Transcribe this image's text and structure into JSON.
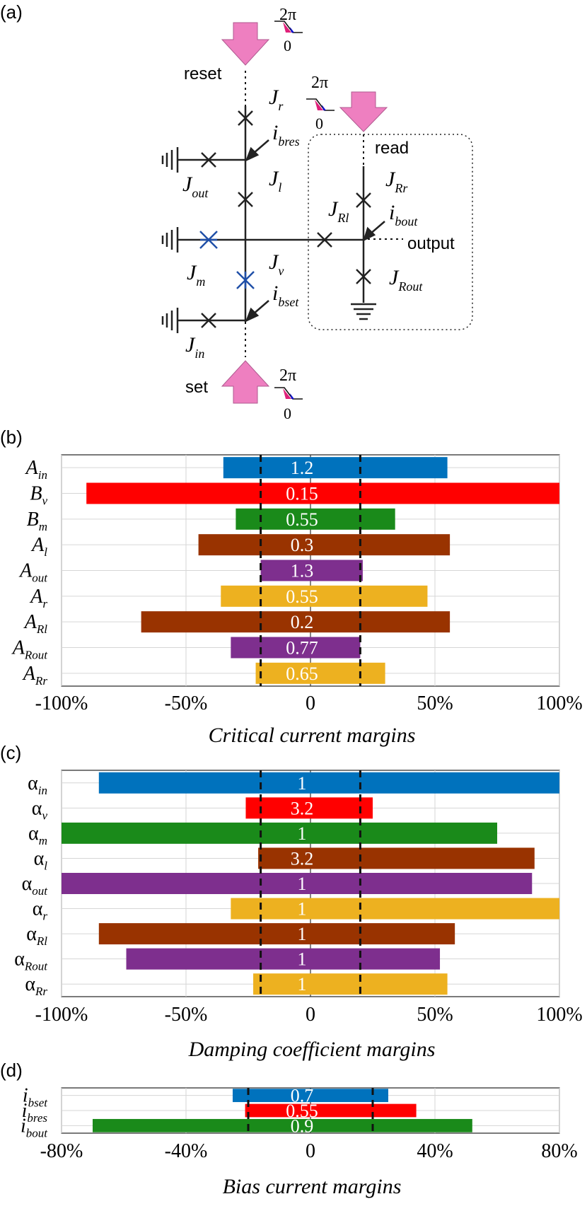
{
  "panel_labels": {
    "a": "(a)",
    "b": "(b)",
    "c": "(c)",
    "d": "(d)"
  },
  "circuit": {
    "ports": {
      "reset": "reset",
      "read": "read",
      "output": "output",
      "set": "set"
    },
    "phase_hi": "2π",
    "phase_lo": "0",
    "junctions": {
      "Jr": {
        "main": "J",
        "sub": "r"
      },
      "Jl": {
        "main": "J",
        "sub": "l"
      },
      "Jout": {
        "main": "J",
        "sub": "out"
      },
      "Jm": {
        "main": "J",
        "sub": "m"
      },
      "Jv": {
        "main": "J",
        "sub": "v"
      },
      "Jin": {
        "main": "J",
        "sub": "in"
      },
      "JRl": {
        "main": "J",
        "sub": "Rl"
      },
      "JRr": {
        "main": "J",
        "sub": "Rr"
      },
      "JRout": {
        "main": "J",
        "sub": "Rout"
      }
    },
    "currents": {
      "ibres": {
        "main": "i",
        "sub": "bres"
      },
      "ibset": {
        "main": "i",
        "sub": "bset"
      },
      "ibout": {
        "main": "i",
        "sub": "bout"
      }
    },
    "colors": {
      "arrow": "#ee7fc0",
      "junction": "#333333",
      "blue_junction": "#1f4fa8",
      "phase_pink": "#e0207a",
      "phase_blue": "#1010d0"
    }
  },
  "chart_data": [
    {
      "type": "bar",
      "panel": "b",
      "xlabel": "Critical current margins",
      "xlim": [
        -100,
        100
      ],
      "xticks": [
        -100,
        -50,
        0,
        50,
        100
      ],
      "xtick_labels": [
        "-100%",
        "-50%",
        "0",
        "50%",
        "100%"
      ],
      "threshold_lines": [
        -20,
        20
      ],
      "grid": true,
      "rows": [
        {
          "label": "A",
          "sub": "in",
          "low": -35,
          "high": 55,
          "value_label": "1.2",
          "color": "#0072bd"
        },
        {
          "label": "B",
          "sub": "v",
          "low": -90,
          "high": 100,
          "value_label": "0.15",
          "color": "#ff0000"
        },
        {
          "label": "B",
          "sub": "m",
          "low": -30,
          "high": 34,
          "value_label": "0.55",
          "color": "#1a8a1a"
        },
        {
          "label": "A",
          "sub": "l",
          "low": -45,
          "high": 56,
          "value_label": "0.3",
          "color": "#993300"
        },
        {
          "label": "A",
          "sub": "out",
          "low": -20,
          "high": 21,
          "value_label": "1.3",
          "color": "#7e2f8e"
        },
        {
          "label": "A",
          "sub": "r",
          "low": -36,
          "high": 47,
          "value_label": "0.55",
          "color": "#edb120"
        },
        {
          "label": "A",
          "sub": "Rl",
          "low": -68,
          "high": 56,
          "value_label": "0.2",
          "color": "#993300"
        },
        {
          "label": "A",
          "sub": "Rout",
          "low": -32,
          "high": 20,
          "value_label": "0.77",
          "color": "#7e2f8e"
        },
        {
          "label": "A",
          "sub": "Rr",
          "low": -22,
          "high": 30,
          "value_label": "0.65",
          "color": "#edb120"
        }
      ]
    },
    {
      "type": "bar",
      "panel": "c",
      "xlabel": "Damping coefficient margins",
      "xlim": [
        -100,
        100
      ],
      "xticks": [
        -100,
        -50,
        0,
        50,
        100
      ],
      "xtick_labels": [
        "-100%",
        "-50%",
        "0",
        "50%",
        "100%"
      ],
      "threshold_lines": [
        -20,
        20
      ],
      "grid": true,
      "rows": [
        {
          "label": "α",
          "sub": "in",
          "low": -85,
          "high": 100,
          "value_label": "1",
          "color": "#0072bd"
        },
        {
          "label": "α",
          "sub": "v",
          "low": -26,
          "high": 25,
          "value_label": "3.2",
          "color": "#ff0000"
        },
        {
          "label": "α",
          "sub": "m",
          "low": -100,
          "high": 75,
          "value_label": "1",
          "color": "#1a8a1a"
        },
        {
          "label": "α",
          "sub": "l",
          "low": -21,
          "high": 90,
          "value_label": "3.2",
          "color": "#993300"
        },
        {
          "label": "α",
          "sub": "out",
          "low": -100,
          "high": 89,
          "value_label": "1",
          "color": "#7e2f8e"
        },
        {
          "label": "α",
          "sub": "r",
          "low": -32,
          "high": 100,
          "value_label": "1",
          "color": "#edb120"
        },
        {
          "label": "α",
          "sub": "Rl",
          "low": -85,
          "high": 58,
          "value_label": "1",
          "color": "#993300"
        },
        {
          "label": "α",
          "sub": "Rout",
          "low": -74,
          "high": 52,
          "value_label": "1",
          "color": "#7e2f8e"
        },
        {
          "label": "α",
          "sub": "Rr",
          "low": -23,
          "high": 55,
          "value_label": "1",
          "color": "#edb120"
        }
      ]
    },
    {
      "type": "bar",
      "panel": "d",
      "xlabel": "Bias current margins",
      "xlim": [
        -80,
        80
      ],
      "xticks": [
        -80,
        -40,
        0,
        40,
        80
      ],
      "xtick_labels": [
        "-80%",
        "-40%",
        "0",
        "40%",
        "80%"
      ],
      "threshold_lines": [
        -20,
        20
      ],
      "grid": true,
      "rows": [
        {
          "label": "i",
          "sub": "bset",
          "low": -25,
          "high": 25,
          "value_label": "0.7",
          "color": "#0072bd"
        },
        {
          "label": "i",
          "sub": "bres",
          "low": -21,
          "high": 34,
          "value_label": "0.55",
          "color": "#ff0000"
        },
        {
          "label": "i",
          "sub": "bout",
          "low": -70,
          "high": 52,
          "value_label": "0.9",
          "color": "#1a8a1a"
        }
      ]
    }
  ]
}
